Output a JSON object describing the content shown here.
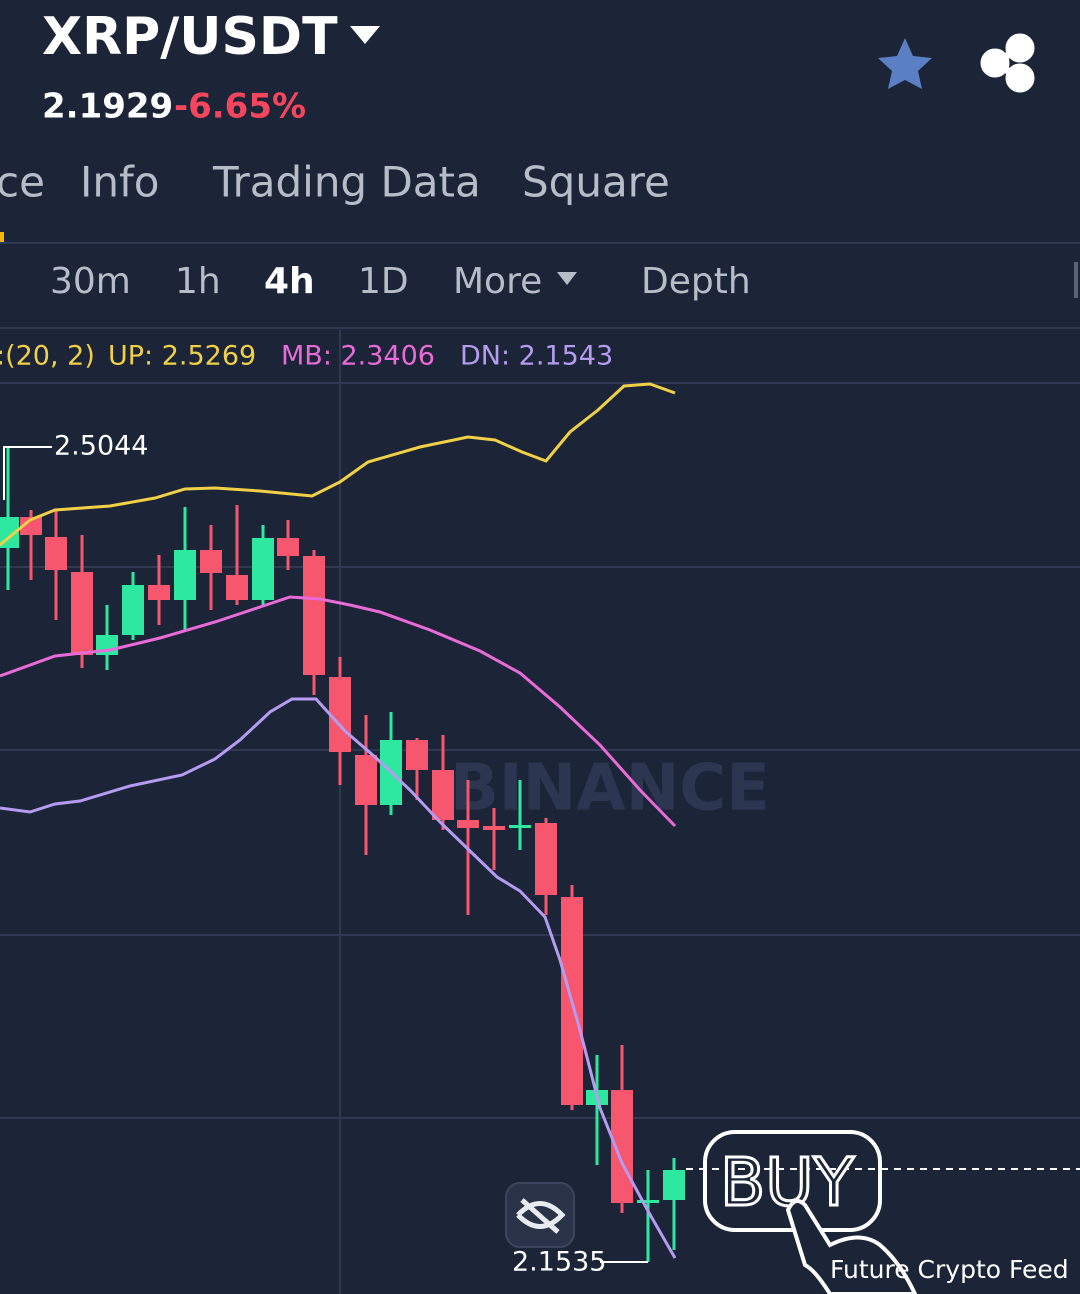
{
  "header": {
    "pair": "XRP/USDT",
    "price": "2.1929",
    "change": "-6.65%"
  },
  "tabs": [
    "ce",
    "Info",
    "Trading Data",
    "Square"
  ],
  "intervals": [
    "30m",
    "1h",
    "4h",
    "1D",
    "More",
    "Depth"
  ],
  "indicator": {
    "params": ":(20, 2)",
    "up": "UP: 2.5269",
    "mb": "MB: 2.3406",
    "dn": "DN: 2.1543"
  },
  "chart": {
    "high_label": "2.5044",
    "low_label": "2.1535",
    "watermark": "BINANCE"
  },
  "overlay": {
    "buy": "BUY",
    "credit": "Future Crypto Feed"
  }
}
